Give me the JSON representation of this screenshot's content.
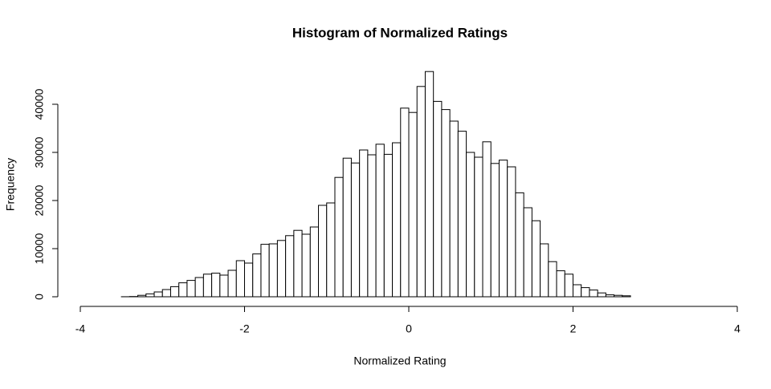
{
  "chart_data": {
    "type": "histogram",
    "title": "Histogram of Normalized Ratings",
    "xlabel": "Normalized Rating",
    "ylabel": "Frequency",
    "bins": [
      -3.9,
      -3.8,
      -3.7,
      -3.6,
      -3.5,
      -3.4,
      -3.3,
      -3.2,
      -3.1,
      -3.0,
      -2.9,
      -2.8,
      -2.7,
      -2.6,
      -2.5,
      -2.4,
      -2.3,
      -2.2,
      -2.1,
      -2.0,
      -1.9,
      -1.8,
      -1.7,
      -1.6,
      -1.5,
      -1.4,
      -1.3,
      -1.2,
      -1.1,
      -1.0,
      -0.9,
      -0.8,
      -0.7,
      -0.6,
      -0.5,
      -0.4,
      -0.3,
      -0.2,
      -0.1,
      0.0,
      0.1,
      0.2,
      0.3,
      0.4,
      0.5,
      0.6,
      0.7,
      0.8,
      0.9,
      1.0,
      1.1,
      1.2,
      1.3,
      1.4,
      1.5,
      1.6,
      1.7,
      1.8,
      1.9,
      2.0,
      2.1,
      2.2,
      2.3,
      2.4,
      2.5,
      2.6,
      2.7,
      2.8,
      2.9,
      3.0,
      3.1,
      3.2,
      3.3,
      3.4,
      3.5,
      3.6,
      3.7
    ],
    "values": [
      0,
      0,
      0,
      0,
      10,
      50,
      300,
      600,
      1000,
      1500,
      2100,
      2900,
      3400,
      4000,
      4700,
      4900,
      4500,
      5500,
      7500,
      7000,
      8900,
      10900,
      11000,
      11700,
      12700,
      13800,
      13000,
      14500,
      19000,
      19500,
      24800,
      28800,
      27800,
      30500,
      29500,
      31700,
      29600,
      32000,
      39200,
      38300,
      43700,
      46800,
      40600,
      38900,
      36500,
      34400,
      30000,
      29000,
      32200,
      27700,
      28400,
      27000,
      21600,
      18500,
      15800,
      11000,
      7300,
      5400,
      4700,
      2500,
      1900,
      1400,
      800,
      400,
      300,
      200,
      0,
      0,
      0,
      0,
      0,
      0,
      0,
      0,
      0,
      0
    ],
    "color": "#ffffff",
    "xlim": [
      -4,
      4
    ],
    "ylim": [
      0,
      48000
    ],
    "xticks": [
      -4,
      -2,
      0,
      2,
      4
    ],
    "yticks": [
      0,
      10000,
      20000,
      30000,
      40000
    ]
  }
}
